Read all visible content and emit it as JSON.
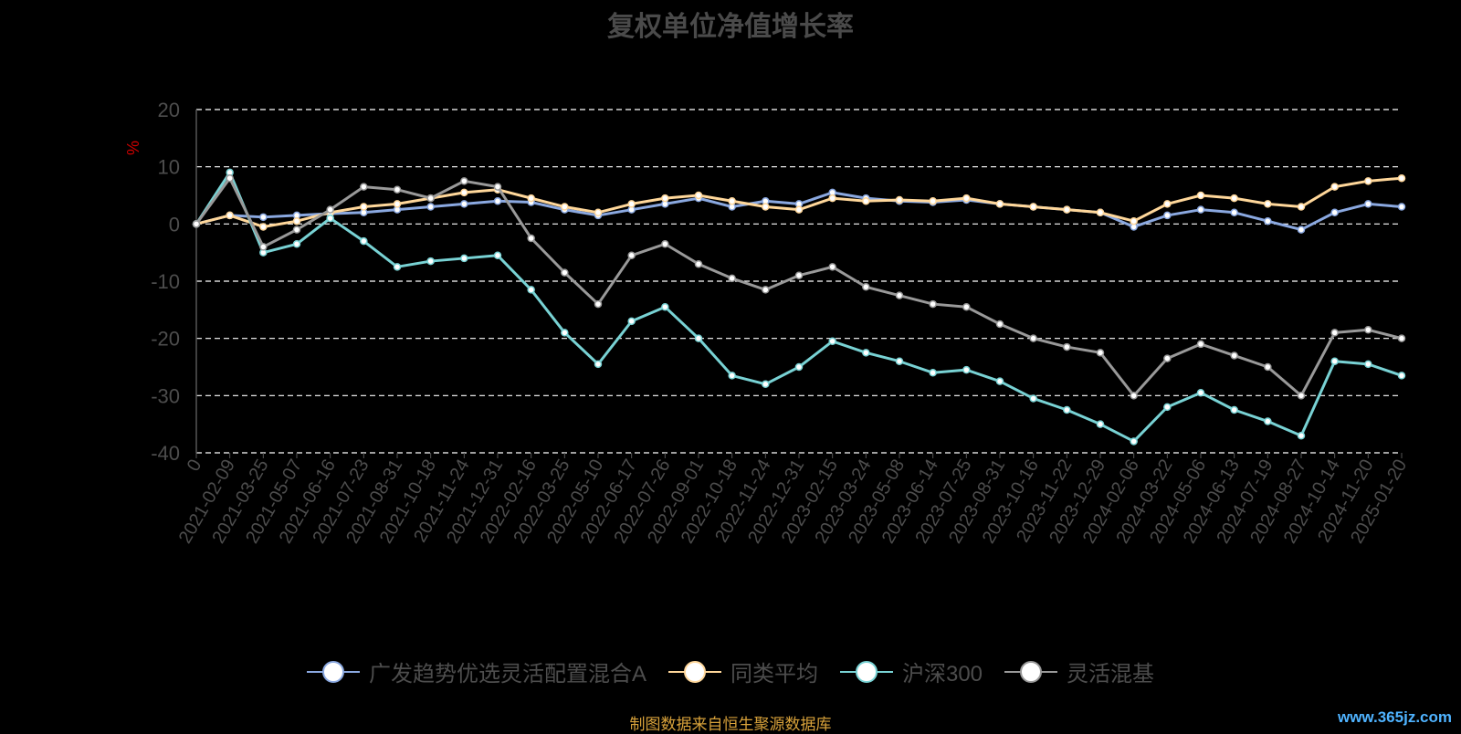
{
  "chart_data": {
    "type": "line",
    "title": "复权单位净值增长率",
    "ylabel": "%",
    "ylim": [
      -40,
      20
    ],
    "yticks": [
      20,
      10,
      0,
      -10,
      -20,
      -30,
      -40
    ],
    "grid": true,
    "legend_position": "bottom",
    "x_tick_labels": [
      "0",
      "2021-02-09",
      "2021-03-25",
      "2021-05-07",
      "2021-06-16",
      "2021-07-23",
      "2021-08-31",
      "2021-10-18",
      "2021-11-24",
      "2021-12-31",
      "2022-02-16",
      "2022-03-25",
      "2022-05-10",
      "2022-06-17",
      "2022-07-26",
      "2022-09-01",
      "2022-10-18",
      "2022-11-24",
      "2022-12-31",
      "2023-02-15",
      "2023-03-24",
      "2023-05-08",
      "2023-06-14",
      "2023-07-25",
      "2023-08-31",
      "2023-10-16",
      "2023-11-22",
      "2023-12-29",
      "2024-02-06",
      "2024-03-22",
      "2024-05-06",
      "2024-06-13",
      "2024-07-19",
      "2024-08-27",
      "2024-10-14",
      "2024-11-20",
      "2025-01-20"
    ],
    "series": [
      {
        "name": "广发趋势优选灵活配置混合A",
        "color": "#8aa8e0",
        "values": [
          0,
          1.5,
          1.2,
          1.5,
          1.8,
          2.0,
          2.5,
          3.0,
          3.5,
          4.0,
          3.8,
          2.5,
          1.5,
          2.5,
          3.5,
          4.5,
          3.0,
          4.0,
          3.5,
          5.5,
          4.5,
          4.0,
          3.8,
          4.2,
          3.5,
          3.0,
          2.5,
          2.0,
          -0.5,
          1.5,
          2.5,
          2.0,
          0.5,
          -1.0,
          2.0,
          3.5,
          3.0
        ]
      },
      {
        "name": "同类平均",
        "color": "#ffd79a",
        "values": [
          0,
          1.5,
          -0.5,
          0.5,
          2.0,
          3.0,
          3.5,
          4.5,
          5.5,
          6.0,
          4.5,
          3.0,
          2.0,
          3.5,
          4.5,
          5.0,
          4.0,
          3.0,
          2.5,
          4.5,
          4.0,
          4.2,
          4.0,
          4.5,
          3.5,
          3.0,
          2.5,
          2.0,
          0.5,
          3.5,
          5.0,
          4.5,
          3.5,
          3.0,
          6.5,
          7.5,
          8.0
        ]
      },
      {
        "name": "沪深300",
        "color": "#78d2d4",
        "values": [
          0,
          9.0,
          -5.0,
          -3.5,
          1.0,
          -3.0,
          -7.5,
          -6.5,
          -6.0,
          -5.5,
          -11.5,
          -19.0,
          -24.5,
          -17.0,
          -14.5,
          -20.0,
          -26.5,
          -28.0,
          -25.0,
          -20.5,
          -22.5,
          -24.0,
          -26.0,
          -25.5,
          -27.5,
          -30.5,
          -32.5,
          -35.0,
          -38.0,
          -32.0,
          -29.5,
          -32.5,
          -34.5,
          -37.0,
          -24.0,
          -24.5,
          -26.5
        ]
      },
      {
        "name": "灵活混基",
        "color": "#999999",
        "values": [
          0,
          8.0,
          -4.0,
          -1.0,
          2.5,
          6.5,
          6.0,
          4.5,
          7.5,
          6.5,
          -2.5,
          -8.5,
          -14.0,
          -5.5,
          -3.5,
          -7.0,
          -9.5,
          -11.5,
          -9.0,
          -7.5,
          -11.0,
          -12.5,
          -14.0,
          -14.5,
          -17.5,
          -20.0,
          -21.5,
          -22.5,
          -30.0,
          -23.5,
          -21.0,
          -23.0,
          -25.0,
          -30.0,
          -19.0,
          -18.5,
          -20.0
        ]
      }
    ]
  },
  "footer": {
    "source_note": "制图数据来自恒生聚源数据库",
    "watermark": "www.365jz.com"
  }
}
